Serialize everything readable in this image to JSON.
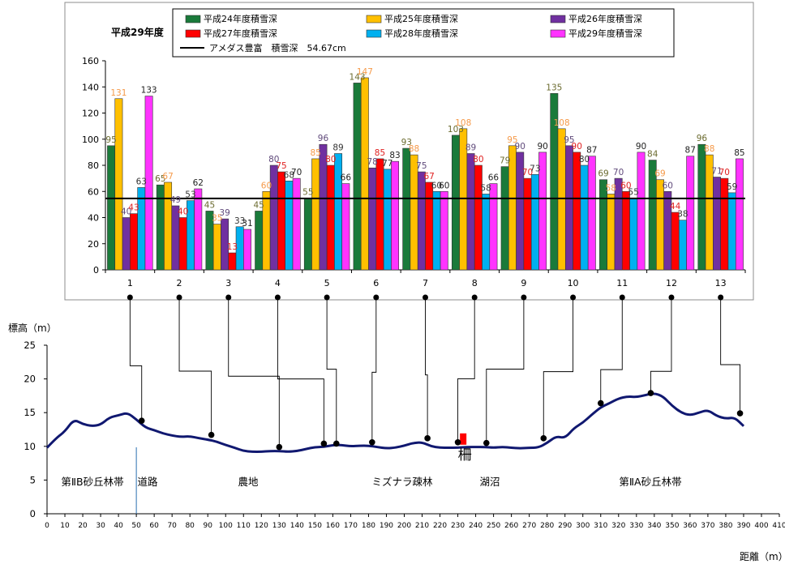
{
  "chart_data": [
    {
      "type": "bar",
      "title": "平成29年度",
      "categories": [
        "1",
        "2",
        "3",
        "4",
        "5",
        "6",
        "7",
        "8",
        "9",
        "10",
        "11",
        "12",
        "13"
      ],
      "ylim": [
        0,
        160
      ],
      "yticks": [
        0,
        20,
        40,
        60,
        80,
        100,
        120,
        140,
        160
      ],
      "grid": false,
      "legend_position": "top",
      "series": [
        {
          "name": "平成24年度積雪深",
          "color": "#1a7a3a",
          "label_color": "#6b6b2f",
          "values": [
            95,
            65,
            45,
            45,
            55,
            143,
            93,
            103,
            79,
            135,
            69,
            84,
            96
          ]
        },
        {
          "name": "平成25年度積雪深",
          "color": "#ffc000",
          "label_color": "#f59a4a",
          "values": [
            131,
            67,
            35,
            60,
            85,
            147,
            88,
            108,
            95,
            108,
            58,
            69,
            88
          ]
        },
        {
          "name": "平成26年度積雪深",
          "color": "#7030a0",
          "label_color": "#604a7b",
          "values": [
            40,
            49,
            39,
            80,
            96,
            78,
            75,
            89,
            90,
            95,
            70,
            60,
            71
          ]
        },
        {
          "name": "平成27年度積雪深",
          "color": "#ff0000",
          "label_color": "#e02020",
          "values": [
            43,
            40,
            13,
            75,
            80,
            85,
            67,
            80,
            70,
            90,
            60,
            44,
            70
          ]
        },
        {
          "name": "平成28年度積雪深",
          "color": "#00b0f0",
          "label_color": "#333333",
          "values": [
            63,
            53,
            33,
            68,
            89,
            77,
            60,
            58,
            73,
            80,
            55,
            38,
            59
          ]
        },
        {
          "name": "平成29年度積雪深",
          "color": "#ff33ff",
          "label_color": "#222222",
          "values": [
            133,
            62,
            31,
            70,
            66,
            83,
            60,
            66,
            90,
            87,
            90,
            87,
            85
          ]
        }
      ],
      "reference_line": {
        "name": "アメダス豊富　積雪深　54.67cm",
        "value": 54.67,
        "color": "#000000"
      }
    },
    {
      "type": "line",
      "ylabel": "標高（m）",
      "xlabel": "距離（m）",
      "xlim": [
        0,
        410
      ],
      "ylim": [
        0,
        25
      ],
      "xticks": [
        0,
        10,
        20,
        30,
        40,
        50,
        60,
        70,
        80,
        90,
        100,
        110,
        120,
        130,
        140,
        150,
        160,
        170,
        180,
        190,
        200,
        210,
        220,
        230,
        240,
        250,
        260,
        270,
        280,
        290,
        300,
        310,
        320,
        330,
        340,
        350,
        360,
        370,
        380,
        390,
        400,
        410
      ],
      "yticks": [
        0,
        5,
        10,
        15,
        20,
        25
      ],
      "line_color": "#101870",
      "series": [
        {
          "name": "",
          "x": [
            0,
            5,
            10,
            15,
            20,
            25,
            30,
            35,
            40,
            45,
            50,
            55,
            60,
            65,
            70,
            75,
            80,
            85,
            90,
            95,
            100,
            105,
            110,
            115,
            120,
            125,
            130,
            135,
            140,
            145,
            150,
            155,
            160,
            165,
            170,
            175,
            180,
            185,
            190,
            195,
            200,
            205,
            210,
            215,
            220,
            225,
            230,
            235,
            240,
            245,
            250,
            255,
            260,
            265,
            270,
            275,
            280,
            285,
            290,
            295,
            300,
            305,
            310,
            315,
            320,
            325,
            330,
            335,
            340,
            345,
            350,
            355,
            360,
            365,
            370,
            375,
            380,
            385,
            390
          ],
          "y": [
            9.8,
            11.2,
            12.2,
            14.0,
            13.3,
            13.0,
            13.2,
            14.3,
            14.6,
            15.0,
            14.0,
            12.8,
            12.4,
            11.9,
            11.6,
            11.4,
            11.5,
            11.2,
            11.0,
            10.7,
            10.2,
            9.8,
            9.3,
            9.2,
            9.2,
            9.3,
            9.3,
            9.2,
            9.3,
            9.6,
            9.9,
            9.9,
            10.2,
            10.2,
            10.0,
            10.1,
            10.1,
            9.9,
            9.7,
            9.8,
            10.1,
            10.5,
            10.6,
            10.0,
            9.8,
            9.8,
            9.8,
            9.9,
            9.9,
            9.9,
            9.8,
            9.9,
            9.8,
            9.7,
            9.8,
            9.8,
            10.5,
            11.5,
            11.2,
            12.7,
            13.5,
            14.7,
            15.8,
            16.4,
            17.1,
            17.4,
            17.3,
            17.6,
            17.9,
            17.4,
            16.0,
            15.0,
            14.6,
            15.0,
            15.4,
            14.5,
            14.1,
            14.3,
            13.0
          ]
        }
      ],
      "zones": [
        {
          "label": "第ⅡB砂丘林帯",
          "x_start": 0,
          "x_end": 50
        },
        {
          "label": "道路",
          "x_start": 50,
          "x_end": 60
        },
        {
          "label": "農地",
          "x_start": 60,
          "x_end": 175
        },
        {
          "label": "ミズナラ疎林",
          "x_start": 175,
          "x_end": 230
        },
        {
          "label": "湖沼",
          "x_start": 230,
          "x_end": 285
        },
        {
          "label": "第ⅡA砂丘林帯",
          "x_start": 285,
          "x_end": 410
        }
      ],
      "fence": {
        "label": "柵",
        "x": 233
      },
      "stations": [
        {
          "id": "1",
          "x": 53,
          "y": 13.8
        },
        {
          "id": "2",
          "x": 92,
          "y": 11.7
        },
        {
          "id": "3",
          "x": 130,
          "y": 9.9
        },
        {
          "id": "4",
          "x": 155,
          "y": 10.4
        },
        {
          "id": "5",
          "x": 162,
          "y": 10.4
        },
        {
          "id": "6",
          "x": 182,
          "y": 10.6
        },
        {
          "id": "7",
          "x": 213,
          "y": 11.2
        },
        {
          "id": "8",
          "x": 230,
          "y": 10.6
        },
        {
          "id": "9",
          "x": 246,
          "y": 10.5
        },
        {
          "id": "10",
          "x": 278,
          "y": 11.2
        },
        {
          "id": "11",
          "x": 310,
          "y": 16.4
        },
        {
          "id": "12",
          "x": 338,
          "y": 17.9
        },
        {
          "id": "13",
          "x": 388,
          "y": 14.9
        }
      ]
    }
  ]
}
